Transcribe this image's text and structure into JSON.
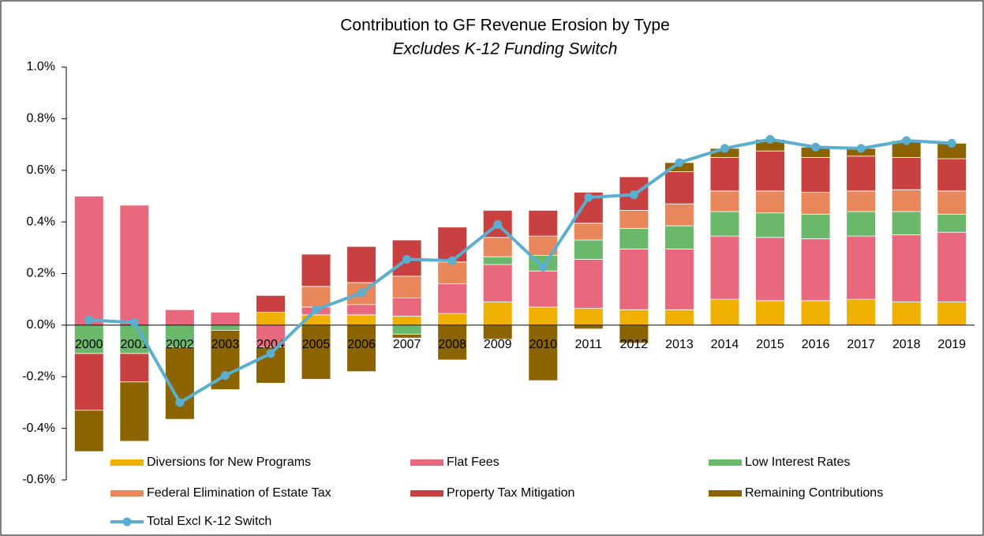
{
  "chart_data": {
    "type": "stacked-bar-line",
    "title": "Contribution to GF Revenue Erosion by Type",
    "subtitle": "Excludes K-12 Funding Switch",
    "categories": [
      "2000",
      "2001",
      "2002",
      "2003",
      "2004",
      "2005",
      "2006",
      "2007",
      "2008",
      "2009",
      "2010",
      "2011",
      "2012",
      "2013",
      "2014",
      "2015",
      "2016",
      "2017",
      "2018",
      "2019"
    ],
    "ylim": [
      -0.6,
      1.0
    ],
    "yticks": [
      {
        "value": -0.6,
        "label": "-0.6%"
      },
      {
        "value": -0.4,
        "label": "-0.4%"
      },
      {
        "value": -0.2,
        "label": "-0.2%"
      },
      {
        "value": 0,
        "label": "0.0%"
      },
      {
        "value": 0.2,
        "label": "0.2%"
      },
      {
        "value": 0.4,
        "label": "0.4%"
      },
      {
        "value": 0.6,
        "label": "0.6%"
      },
      {
        "value": 0.8,
        "label": "0.8%"
      },
      {
        "value": 1.0,
        "label": "1.0%"
      }
    ],
    "grid": false,
    "legend": "bottom",
    "series": [
      {
        "name": "Diversions for New Programs",
        "color": "#f0b000",
        "values": [
          0,
          0,
          0,
          0,
          0.05,
          0.04,
          0.04,
          0.035,
          0.045,
          0.09,
          0.07,
          0.065,
          0.06,
          0.06,
          0.1,
          0.095,
          0.095,
          0.1,
          0.09,
          0.09
        ]
      },
      {
        "name": "Flat Fees",
        "color": "#e8697d",
        "values": [
          0.5,
          0.465,
          0.06,
          0.05,
          -0.085,
          0.03,
          0.04,
          0.07,
          0.115,
          0.145,
          0.14,
          0.19,
          0.235,
          0.235,
          0.245,
          0.245,
          0.24,
          0.245,
          0.26,
          0.27
        ]
      },
      {
        "name": "Low Interest Rates",
        "color": "#6ab86a",
        "values": [
          -0.11,
          -0.11,
          -0.085,
          -0.02,
          0,
          0,
          0,
          -0.035,
          0,
          0.03,
          0.06,
          0.075,
          0.08,
          0.09,
          0.095,
          0.095,
          0.095,
          0.095,
          0.09,
          0.07
        ]
      },
      {
        "name": "Federal Elimination of Estate Tax",
        "color": "#e8875a",
        "values": [
          0,
          0,
          0,
          0,
          0,
          0.08,
          0.085,
          0.085,
          0.085,
          0.075,
          0.075,
          0.065,
          0.07,
          0.085,
          0.08,
          0.085,
          0.085,
          0.08,
          0.085,
          0.09
        ]
      },
      {
        "name": "Property Tax Mitigation",
        "color": "#c84040",
        "values": [
          -0.22,
          -0.11,
          0,
          0,
          0.065,
          0.125,
          0.14,
          0.14,
          0.135,
          0.105,
          0.1,
          0.12,
          0.13,
          0.125,
          0.13,
          0.155,
          0.135,
          0.135,
          0.125,
          0.125
        ]
      },
      {
        "name": "Remaining Contributions",
        "color": "#8b6400",
        "values": [
          -0.16,
          -0.23,
          -0.28,
          -0.23,
          -0.14,
          -0.21,
          -0.18,
          -0.015,
          -0.135,
          -0.055,
          -0.215,
          -0.015,
          -0.07,
          0.035,
          0.035,
          0.045,
          0.04,
          0.03,
          0.065,
          0.06
        ]
      }
    ],
    "line": {
      "name": "Total Excl K-12 Switch",
      "color": "#5aaed0",
      "values": [
        0.02,
        0.01,
        -0.3,
        -0.195,
        -0.11,
        0.06,
        0.125,
        0.255,
        0.25,
        0.39,
        0.225,
        0.495,
        0.505,
        0.63,
        0.685,
        0.72,
        0.69,
        0.685,
        0.715,
        0.705
      ]
    }
  }
}
